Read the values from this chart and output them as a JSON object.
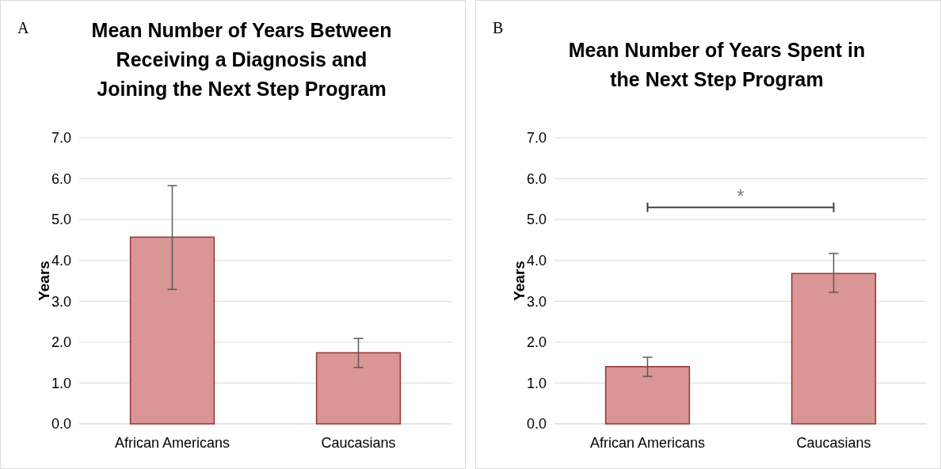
{
  "chart_data": [
    {
      "type": "bar",
      "title": "Mean Number of Years Between Receiving a Diagnosis and Joining the Next Step Program",
      "ylabel": "Years",
      "categories": [
        "African Americans",
        "Caucasians"
      ],
      "values": [
        4.57,
        1.74
      ],
      "errors": [
        [
          3.29,
          5.83
        ],
        [
          1.38,
          2.09
        ]
      ],
      "color": "#d99694",
      "ylim": [
        0,
        7
      ],
      "yticks": [
        {
          "value": 0,
          "label": "0.0"
        },
        {
          "value": 1,
          "label": "1.0"
        },
        {
          "value": 2,
          "label": "2.0"
        },
        {
          "value": 3,
          "label": "3.0"
        },
        {
          "value": 4,
          "label": "4.0"
        },
        {
          "value": 5,
          "label": "5.0"
        },
        {
          "value": 6,
          "label": "6.0"
        },
        {
          "value": 7,
          "label": "7.0"
        }
      ],
      "grid": "y",
      "annotations": [
        "A"
      ]
    },
    {
      "type": "bar",
      "title": "Mean Number of Years Spent in the Next Step Program",
      "ylabel": "Years",
      "categories": [
        "African Americans",
        "Caucasians"
      ],
      "values": [
        1.4,
        3.68
      ],
      "errors": [
        [
          1.16,
          1.63
        ],
        [
          3.22,
          4.17
        ]
      ],
      "color": "#d99694",
      "ylim": [
        0,
        7
      ],
      "yticks": [
        {
          "value": 0,
          "label": "0.0"
        },
        {
          "value": 1,
          "label": "1.0"
        },
        {
          "value": 2,
          "label": "2.0"
        },
        {
          "value": 3,
          "label": "3.0"
        },
        {
          "value": 4,
          "label": "4.0"
        },
        {
          "value": 5,
          "label": "5.0"
        },
        {
          "value": 6,
          "label": "6.0"
        },
        {
          "value": 7,
          "label": "7.0"
        }
      ],
      "grid": "y",
      "annotations": [
        "B",
        "*"
      ]
    }
  ]
}
